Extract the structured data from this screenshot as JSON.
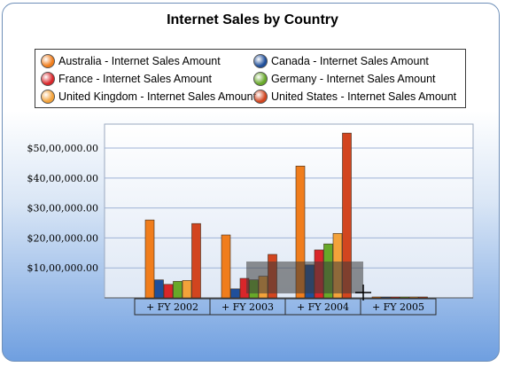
{
  "chart_data": {
    "type": "bar",
    "title": "Internet Sales by Country",
    "categories": [
      "+ FY 2002",
      "+ FY 2003",
      "+ FY 2004",
      "+ FY 2005"
    ],
    "series": [
      {
        "name": "Australia - Internet Sales Amount",
        "color": "#f07d1c",
        "values": [
          2600000,
          2100000,
          4400000,
          0
        ]
      },
      {
        "name": "Canada - Internet Sales Amount",
        "color": "#1f4f9a",
        "values": [
          600000,
          300000,
          1100000,
          0
        ]
      },
      {
        "name": "France - Internet Sales Amount",
        "color": "#d9262a",
        "values": [
          450000,
          650000,
          1600000,
          0
        ]
      },
      {
        "name": "Germany - Internet Sales Amount",
        "color": "#67a829",
        "values": [
          550000,
          600000,
          1800000,
          0
        ]
      },
      {
        "name": "United Kingdom - Internet Sales Amount",
        "color": "#f3a23a",
        "values": [
          580000,
          720000,
          2150000,
          0
        ]
      },
      {
        "name": "United States - Internet Sales Amount",
        "color": "#d2451f",
        "values": [
          2480000,
          1450000,
          5500000,
          0
        ]
      }
    ],
    "yticks": [
      "$10,00,000.00",
      "$20,00,000.00",
      "$30,00,000.00",
      "$40,00,000.00",
      "$50,00,000.00"
    ],
    "ylim": [
      0,
      5800000
    ],
    "legend_position": "top",
    "grid": true
  }
}
